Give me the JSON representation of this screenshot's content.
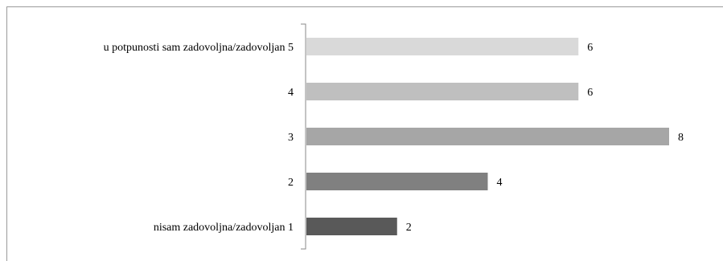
{
  "chart_data": {
    "type": "bar",
    "orientation": "horizontal",
    "categories": [
      "u potpunosti sam zadovoljna/zadovoljan 5",
      "4",
      "3",
      "2",
      "nisam zadovoljna/zadovoljan 1"
    ],
    "values": [
      6,
      6,
      8,
      4,
      2
    ],
    "colors": [
      "#d9d9d9",
      "#bfbfbf",
      "#a6a6a6",
      "#808080",
      "#595959"
    ],
    "xlim": [
      0,
      8
    ],
    "grid": false,
    "legend": "none",
    "data_labels": true
  }
}
